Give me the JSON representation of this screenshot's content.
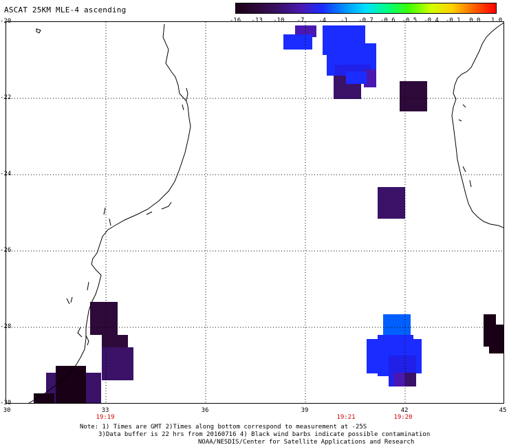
{
  "title": "ASCAT 25KM MLE-4 ascending",
  "colorbar": {
    "labels": [
      "-16",
      "-13",
      "-10",
      "-7",
      "-4",
      "-1",
      "-0.7",
      "-0.6",
      "-0.5",
      "-0.4",
      "-0.1",
      "0.0",
      "1.0"
    ],
    "colors": [
      "#1a0016",
      "#2e0a3a",
      "#3a1268",
      "#4a18b0",
      "#1a2cff",
      "#0090ff",
      "#00e0ff",
      "#00ff80",
      "#40ff00",
      "#d0ff00",
      "#ffd000",
      "#ff6000",
      "#ff0000"
    ]
  },
  "map": {
    "lon_labels": [
      "30",
      "33",
      "36",
      "39",
      "42",
      "45"
    ],
    "lat_labels": [
      "-20",
      "-22",
      "-24",
      "-26",
      "-28",
      "-30"
    ],
    "pass_times": [
      "19:19",
      "19:21",
      "19:20"
    ],
    "grid": "dotted",
    "land_outline_color": "#000000"
  },
  "notes": {
    "line1": "Note: 1) Times are GMT 2)Times along bottom correspond to measurement at -25S",
    "line2": "3)Data buffer is 22 hrs from 20160716 4) Black wind barbs indicate possible contamination",
    "line3": "NOAA/NESDIS/Center for Satellite Applications and Research"
  }
}
